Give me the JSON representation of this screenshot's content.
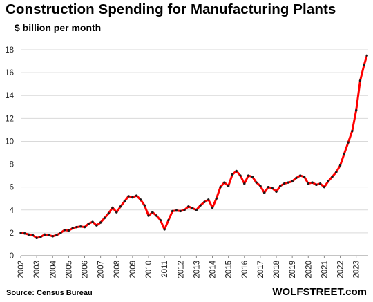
{
  "title": "Construction  Spending  for Manufacturing  Plants",
  "subtitle": "$ billion per month",
  "source": "Source: Census Bureau",
  "brand": "WOLFSTREET.com",
  "colors": {
    "line": "#ff0000",
    "markers": "#1a1a1a",
    "grid": "#d9d9d9",
    "axis": "#888888",
    "text": "#000000"
  },
  "chart_data": {
    "type": "line",
    "title": "Construction  Spending  for Manufacturing  Plants",
    "ylabel": "$ billion per month",
    "xlabel": "",
    "ylim": [
      0,
      18
    ],
    "yticks": [
      0,
      2,
      4,
      6,
      8,
      10,
      12,
      14,
      16,
      18
    ],
    "xlim": [
      2002.0,
      2023.75
    ],
    "xticks": [
      2002,
      2003,
      2004,
      2005,
      2006,
      2007,
      2008,
      2009,
      2010,
      2011,
      2012,
      2013,
      2014,
      2015,
      2016,
      2017,
      2018,
      2019,
      2020,
      2021,
      2022,
      2023
    ],
    "grid": "horizontal",
    "legend": "none",
    "markers": true,
    "series": [
      {
        "x": [
          2002.0,
          2002.25,
          2002.5,
          2002.75,
          2003.0,
          2003.25,
          2003.5,
          2003.75,
          2004.0,
          2004.25,
          2004.5,
          2004.75,
          2005.0,
          2005.25,
          2005.5,
          2005.75,
          2006.0,
          2006.25,
          2006.5,
          2006.75,
          2007.0,
          2007.25,
          2007.5,
          2007.75,
          2008.0,
          2008.25,
          2008.5,
          2008.75,
          2009.0,
          2009.25,
          2009.5,
          2009.75,
          2010.0,
          2010.25,
          2010.5,
          2010.75,
          2011.0,
          2011.25,
          2011.5,
          2011.75,
          2012.0,
          2012.25,
          2012.5,
          2012.75,
          2013.0,
          2013.25,
          2013.5,
          2013.75,
          2014.0,
          2014.25,
          2014.5,
          2014.75,
          2015.0,
          2015.25,
          2015.5,
          2015.75,
          2016.0,
          2016.25,
          2016.5,
          2016.75,
          2017.0,
          2017.25,
          2017.5,
          2017.75,
          2018.0,
          2018.25,
          2018.5,
          2018.75,
          2019.0,
          2019.25,
          2019.5,
          2019.75,
          2020.0,
          2020.25,
          2020.5,
          2020.75,
          2021.0,
          2021.25,
          2021.5,
          2021.75,
          2022.0,
          2022.25,
          2022.5,
          2022.75,
          2023.0,
          2023.25,
          2023.5,
          2023.67
        ],
        "values": [
          2.0,
          1.95,
          1.85,
          1.8,
          1.55,
          1.65,
          1.85,
          1.8,
          1.7,
          1.8,
          2.0,
          2.25,
          2.2,
          2.4,
          2.5,
          2.55,
          2.5,
          2.8,
          2.95,
          2.65,
          2.9,
          3.3,
          3.7,
          4.2,
          3.8,
          4.3,
          4.75,
          5.2,
          5.1,
          5.25,
          4.9,
          4.4,
          3.5,
          3.8,
          3.5,
          3.1,
          2.3,
          3.1,
          3.9,
          3.95,
          3.9,
          4.0,
          4.3,
          4.15,
          4.0,
          4.4,
          4.7,
          4.9,
          4.2,
          5.0,
          6.0,
          6.4,
          6.1,
          7.1,
          7.4,
          7.0,
          6.3,
          7.0,
          6.9,
          6.4,
          6.1,
          5.5,
          6.0,
          5.9,
          5.6,
          6.1,
          6.3,
          6.4,
          6.5,
          6.8,
          7.0,
          6.9,
          6.3,
          6.4,
          6.2,
          6.3,
          6.0,
          6.5,
          6.9,
          7.3,
          7.9,
          8.9,
          9.9,
          10.9,
          12.7,
          15.3,
          16.7,
          17.5
        ]
      }
    ]
  }
}
